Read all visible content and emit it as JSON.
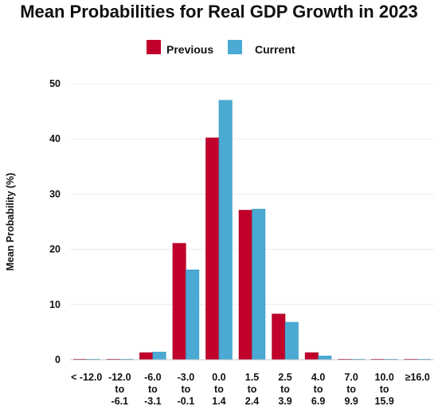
{
  "chart_data": {
    "type": "bar",
    "title": "Mean Probabilities for Real GDP Growth in 2023",
    "xlabel": "",
    "ylabel": "Mean Probability (%)",
    "ylim": [
      0,
      50
    ],
    "yticks": [
      "0",
      "10",
      "20",
      "30",
      "40",
      "50"
    ],
    "grid": "horizontal",
    "legend_position": "top-center",
    "categories": [
      [
        "< -12.0"
      ],
      [
        "-12.0",
        "to",
        "-6.1"
      ],
      [
        "-6.0",
        "to",
        "-3.1"
      ],
      [
        "-3.0",
        "to",
        "-0.1"
      ],
      [
        "0.0",
        "to",
        "1.4"
      ],
      [
        "1.5",
        "to",
        "2.4"
      ],
      [
        "2.5",
        "to",
        "3.9"
      ],
      [
        "4.0",
        "to",
        "6.9"
      ],
      [
        "7.0",
        "to",
        "9.9"
      ],
      [
        "10.0",
        "to",
        "15.9"
      ],
      [
        "≥16.0"
      ]
    ],
    "series": [
      {
        "name": "Previous",
        "color": "#c0002b",
        "values": [
          0.0,
          0.1,
          1.3,
          21.1,
          40.2,
          27.1,
          8.3,
          1.3,
          0.1,
          0.0,
          0.0
        ]
      },
      {
        "name": "Current",
        "color": "#4aaad4",
        "values": [
          0.0,
          0.0,
          1.4,
          16.3,
          47.0,
          27.3,
          6.8,
          0.7,
          0.1,
          0.0,
          0.0
        ]
      }
    ]
  }
}
